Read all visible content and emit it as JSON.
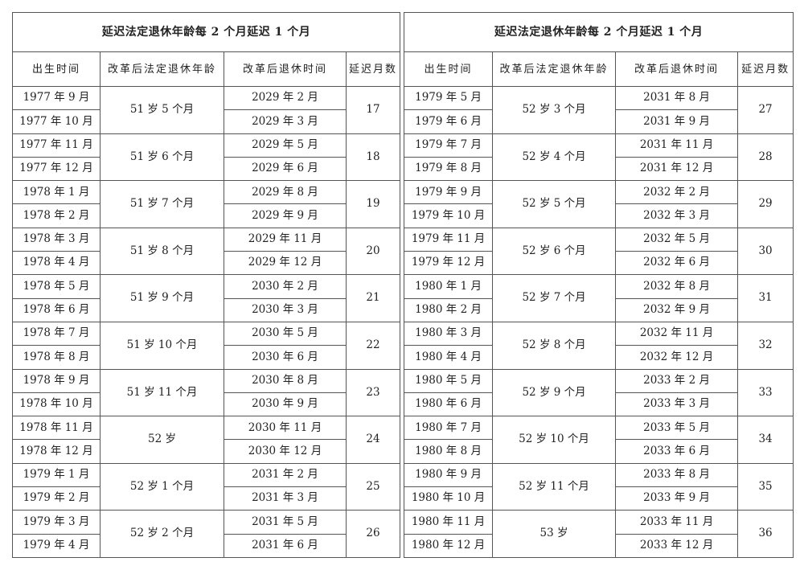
{
  "tables": [
    {
      "title": "延迟法定退休年龄每 2 个月延迟 1 个月",
      "headers": [
        "出生时间",
        "改革后法定退休年龄",
        "改革后退休时间",
        "延迟月数"
      ],
      "groups": [
        {
          "age": "51 岁 5 个月",
          "delay": "17",
          "rows": [
            [
              "1977 年 9 月",
              "2029 年 2 月"
            ],
            [
              "1977 年 10 月",
              "2029 年 3 月"
            ]
          ]
        },
        {
          "age": "51 岁 6 个月",
          "delay": "18",
          "rows": [
            [
              "1977 年 11 月",
              "2029 年 5 月"
            ],
            [
              "1977 年 12 月",
              "2029 年 6 月"
            ]
          ]
        },
        {
          "age": "51 岁 7 个月",
          "delay": "19",
          "rows": [
            [
              "1978 年 1 月",
              "2029 年 8 月"
            ],
            [
              "1978 年 2 月",
              "2029 年 9 月"
            ]
          ]
        },
        {
          "age": "51 岁 8 个月",
          "delay": "20",
          "rows": [
            [
              "1978 年 3 月",
              "2029 年 11 月"
            ],
            [
              "1978 年 4 月",
              "2029 年 12 月"
            ]
          ]
        },
        {
          "age": "51 岁 9 个月",
          "delay": "21",
          "rows": [
            [
              "1978 年 5 月",
              "2030 年 2 月"
            ],
            [
              "1978 年 6 月",
              "2030 年 3 月"
            ]
          ]
        },
        {
          "age": "51 岁 10 个月",
          "delay": "22",
          "rows": [
            [
              "1978 年 7 月",
              "2030 年 5 月"
            ],
            [
              "1978 年 8 月",
              "2030 年 6 月"
            ]
          ]
        },
        {
          "age": "51 岁 11 个月",
          "delay": "23",
          "rows": [
            [
              "1978 年 9 月",
              "2030 年 8 月"
            ],
            [
              "1978 年 10 月",
              "2030 年 9 月"
            ]
          ]
        },
        {
          "age": "52 岁",
          "delay": "24",
          "rows": [
            [
              "1978 年 11 月",
              "2030 年 11 月"
            ],
            [
              "1978 年 12 月",
              "2030 年 12 月"
            ]
          ]
        },
        {
          "age": "52 岁 1 个月",
          "delay": "25",
          "rows": [
            [
              "1979 年 1 月",
              "2031 年 2 月"
            ],
            [
              "1979 年 2 月",
              "2031 年 3 月"
            ]
          ]
        },
        {
          "age": "52 岁 2 个月",
          "delay": "26",
          "rows": [
            [
              "1979 年 3 月",
              "2031 年 5 月"
            ],
            [
              "1979 年 4 月",
              "2031 年 6 月"
            ]
          ]
        }
      ]
    },
    {
      "title": "延迟法定退休年龄每 2 个月延迟 1 个月",
      "headers": [
        "出生时间",
        "改革后法定退休年龄",
        "改革后退休时间",
        "延迟月数"
      ],
      "groups": [
        {
          "age": "52 岁 3 个月",
          "delay": "27",
          "rows": [
            [
              "1979 年 5 月",
              "2031 年 8 月"
            ],
            [
              "1979 年 6 月",
              "2031 年 9 月"
            ]
          ]
        },
        {
          "age": "52 岁 4 个月",
          "delay": "28",
          "rows": [
            [
              "1979 年 7 月",
              "2031 年 11 月"
            ],
            [
              "1979 年 8 月",
              "2031 年 12 月"
            ]
          ]
        },
        {
          "age": "52 岁 5 个月",
          "delay": "29",
          "rows": [
            [
              "1979 年 9 月",
              "2032 年 2 月"
            ],
            [
              "1979 年 10 月",
              "2032 年 3 月"
            ]
          ]
        },
        {
          "age": "52 岁 6 个月",
          "delay": "30",
          "rows": [
            [
              "1979 年 11 月",
              "2032 年 5 月"
            ],
            [
              "1979 年 12 月",
              "2032 年 6 月"
            ]
          ]
        },
        {
          "age": "52 岁 7 个月",
          "delay": "31",
          "rows": [
            [
              "1980 年 1 月",
              "2032 年 8 月"
            ],
            [
              "1980 年 2 月",
              "2032 年 9 月"
            ]
          ]
        },
        {
          "age": "52 岁 8 个月",
          "delay": "32",
          "rows": [
            [
              "1980 年 3 月",
              "2032 年 11 月"
            ],
            [
              "1980 年 4 月",
              "2032 年 12 月"
            ]
          ]
        },
        {
          "age": "52 岁 9 个月",
          "delay": "33",
          "rows": [
            [
              "1980 年 5 月",
              "2033 年 2 月"
            ],
            [
              "1980 年 6 月",
              "2033 年 3 月"
            ]
          ]
        },
        {
          "age": "52 岁 10 个月",
          "delay": "34",
          "rows": [
            [
              "1980 年 7 月",
              "2033 年 5 月"
            ],
            [
              "1980 年 8 月",
              "2033 年 6 月"
            ]
          ]
        },
        {
          "age": "52 岁 11 个月",
          "delay": "35",
          "rows": [
            [
              "1980 年 9 月",
              "2033 年 8 月"
            ],
            [
              "1980 年 10 月",
              "2033 年 9 月"
            ]
          ]
        },
        {
          "age": "53 岁",
          "delay": "36",
          "rows": [
            [
              "1980 年 11 月",
              "2033 年 11 月"
            ],
            [
              "1980 年 12 月",
              "2033 年 12 月"
            ]
          ]
        }
      ]
    }
  ]
}
